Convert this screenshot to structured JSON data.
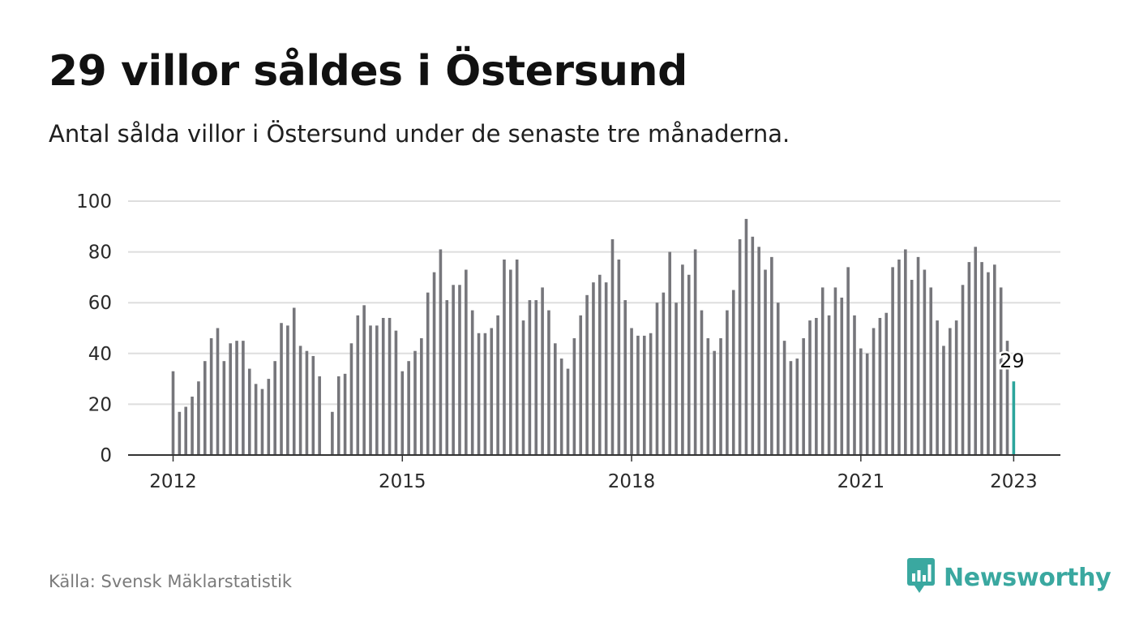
{
  "header": {
    "title": "29 villor såldes i Östersund",
    "subtitle": "Antal sålda villor i Östersund under de senaste tre månaderna."
  },
  "footer": {
    "source": "Källa: Svensk Mäklarstatistik",
    "brand": "Newsworthy",
    "brand_icon": "bar-chart-speech-bubble-icon"
  },
  "colors": {
    "bar": "#76767b",
    "highlight": "#2ca59c",
    "grid": "#dedede",
    "axis": "#333333",
    "brand": "#3aa8a0"
  },
  "chart_data": {
    "type": "bar",
    "title": "29 villor såldes i Östersund",
    "subtitle": "Antal sålda villor i Östersund under de senaste tre månaderna.",
    "xlabel": "",
    "ylabel": "",
    "ylim": [
      0,
      100
    ],
    "y_ticks": [
      0,
      20,
      40,
      60,
      80,
      100
    ],
    "x_tick_labels": [
      "2012",
      "2015",
      "2018",
      "2021",
      "2023"
    ],
    "x_tick_dates": [
      "2012-01",
      "2015-01",
      "2018-01",
      "2021-01",
      "2023-01"
    ],
    "grid": true,
    "x": [
      "2012-01",
      "2012-02",
      "2012-03",
      "2012-04",
      "2012-05",
      "2012-06",
      "2012-07",
      "2012-08",
      "2012-09",
      "2012-10",
      "2012-11",
      "2012-12",
      "2013-01",
      "2013-02",
      "2013-03",
      "2013-04",
      "2013-05",
      "2013-06",
      "2013-07",
      "2013-08",
      "2013-09",
      "2013-10",
      "2013-11",
      "2013-12",
      "2014-01",
      "2014-02",
      "2014-03",
      "2014-04",
      "2014-05",
      "2014-06",
      "2014-07",
      "2014-08",
      "2014-09",
      "2014-10",
      "2014-11",
      "2014-12",
      "2015-01",
      "2015-02",
      "2015-03",
      "2015-04",
      "2015-05",
      "2015-06",
      "2015-07",
      "2015-08",
      "2015-09",
      "2015-10",
      "2015-11",
      "2015-12",
      "2016-01",
      "2016-02",
      "2016-03",
      "2016-04",
      "2016-05",
      "2016-06",
      "2016-07",
      "2016-08",
      "2016-09",
      "2016-10",
      "2016-11",
      "2016-12",
      "2017-01",
      "2017-02",
      "2017-03",
      "2017-04",
      "2017-05",
      "2017-06",
      "2017-07",
      "2017-08",
      "2017-09",
      "2017-10",
      "2017-11",
      "2017-12",
      "2018-01",
      "2018-02",
      "2018-03",
      "2018-04",
      "2018-05",
      "2018-06",
      "2018-07",
      "2018-08",
      "2018-09",
      "2018-10",
      "2018-11",
      "2018-12",
      "2019-01",
      "2019-02",
      "2019-03",
      "2019-04",
      "2019-05",
      "2019-06",
      "2019-07",
      "2019-08",
      "2019-09",
      "2019-10",
      "2019-11",
      "2019-12",
      "2020-01",
      "2020-02",
      "2020-03",
      "2020-04",
      "2020-05",
      "2020-06",
      "2020-07",
      "2020-08",
      "2020-09",
      "2020-10",
      "2020-11",
      "2020-12",
      "2021-01",
      "2021-02",
      "2021-03",
      "2021-04",
      "2021-05",
      "2021-06",
      "2021-07",
      "2021-08",
      "2021-09",
      "2021-10",
      "2021-11",
      "2021-12",
      "2022-01",
      "2022-02",
      "2022-03",
      "2022-04",
      "2022-05",
      "2022-06",
      "2022-07",
      "2022-08",
      "2022-09",
      "2022-10",
      "2022-11",
      "2022-12",
      "2023-01"
    ],
    "values": [
      33,
      17,
      19,
      23,
      29,
      37,
      46,
      50,
      37,
      44,
      45,
      45,
      34,
      28,
      26,
      30,
      37,
      52,
      51,
      58,
      43,
      41,
      39,
      31,
      null,
      17,
      31,
      32,
      44,
      55,
      59,
      51,
      51,
      54,
      54,
      49,
      33,
      37,
      41,
      46,
      64,
      72,
      81,
      61,
      67,
      67,
      73,
      57,
      48,
      48,
      50,
      55,
      77,
      73,
      77,
      53,
      61,
      61,
      66,
      57,
      44,
      38,
      34,
      46,
      55,
      63,
      68,
      71,
      68,
      85,
      77,
      61,
      50,
      47,
      47,
      48,
      60,
      64,
      80,
      60,
      75,
      71,
      81,
      57,
      46,
      41,
      46,
      57,
      65,
      85,
      93,
      86,
      82,
      73,
      78,
      60,
      45,
      37,
      38,
      46,
      53,
      54,
      66,
      55,
      66,
      62,
      74,
      55,
      42,
      40,
      50,
      54,
      56,
      74,
      77,
      81,
      69,
      78,
      73,
      66,
      53,
      43,
      50,
      53,
      67,
      76,
      82,
      76,
      72,
      75,
      66,
      45,
      29
    ],
    "highlight_index": 132,
    "highlight_label": "29"
  }
}
